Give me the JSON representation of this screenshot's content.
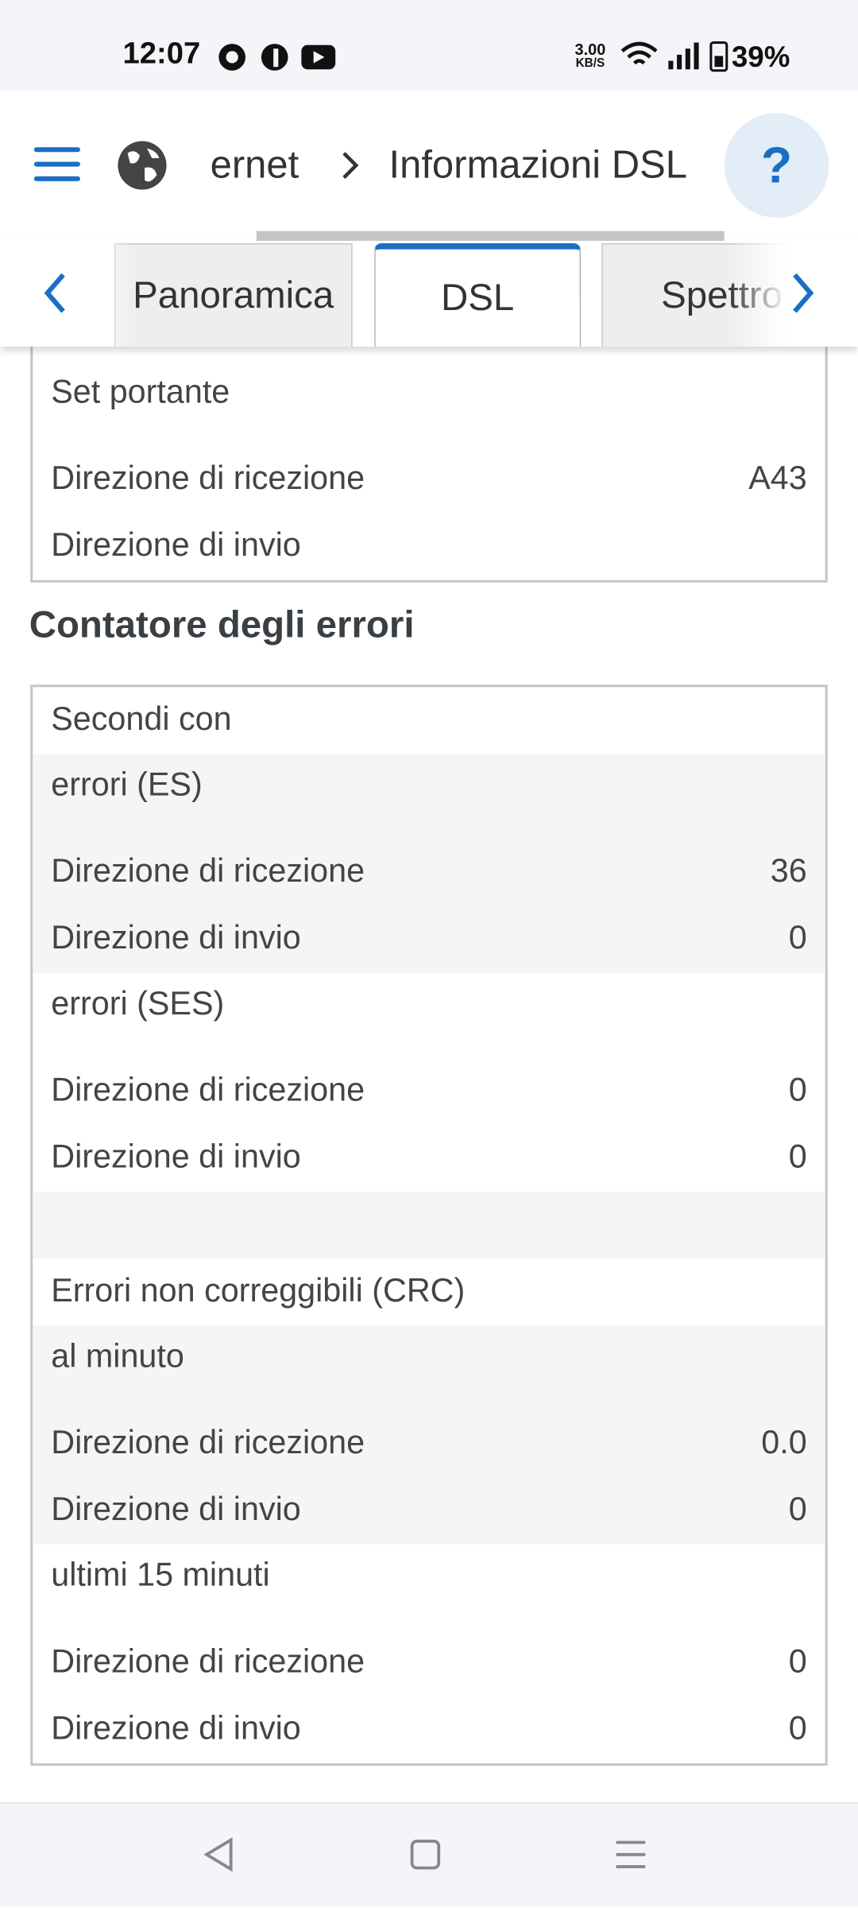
{
  "status_bar": {
    "time": "12:07",
    "net_speed": "3.00",
    "net_unit": "KB/S",
    "battery": "39%"
  },
  "header": {
    "breadcrumb": [
      "ernet",
      "Informazioni DSL"
    ],
    "help": "?"
  },
  "tabs": [
    "Panoramica",
    "DSL",
    "Spettro"
  ],
  "carrier_table": {
    "rows": [
      {
        "label": "Set portante",
        "group": true
      },
      {
        "label": "Direzione di ricezione",
        "value": "A43"
      },
      {
        "label": "Direzione di invio"
      }
    ]
  },
  "error_section": {
    "title": "Contatore degli errori",
    "rows": [
      {
        "label": "Secondi con"
      },
      {
        "label": "errori (ES)",
        "group": true,
        "shaded": true
      },
      {
        "label": "Direzione di ricezione",
        "value": "36",
        "shaded": true
      },
      {
        "label": "Direzione di invio",
        "value": "0",
        "shaded": true
      },
      {
        "label": "errori (SES)",
        "group": true
      },
      {
        "label": "Direzione di ricezione",
        "value": "0"
      },
      {
        "label": "Direzione di invio",
        "value": "0"
      },
      {
        "shaded": true
      },
      {
        "label": "Errori non correggibili (CRC)"
      },
      {
        "label": "al minuto",
        "group": true,
        "shaded": true
      },
      {
        "label": "Direzione di ricezione",
        "value": "0.0",
        "shaded": true
      },
      {
        "label": "Direzione di invio",
        "value": "0",
        "shaded": true
      },
      {
        "label": "ultimi 15 minuti",
        "group": true
      },
      {
        "label": "Direzione di ricezione",
        "value": "0"
      },
      {
        "label": "Direzione di invio",
        "value": "0"
      }
    ]
  }
}
